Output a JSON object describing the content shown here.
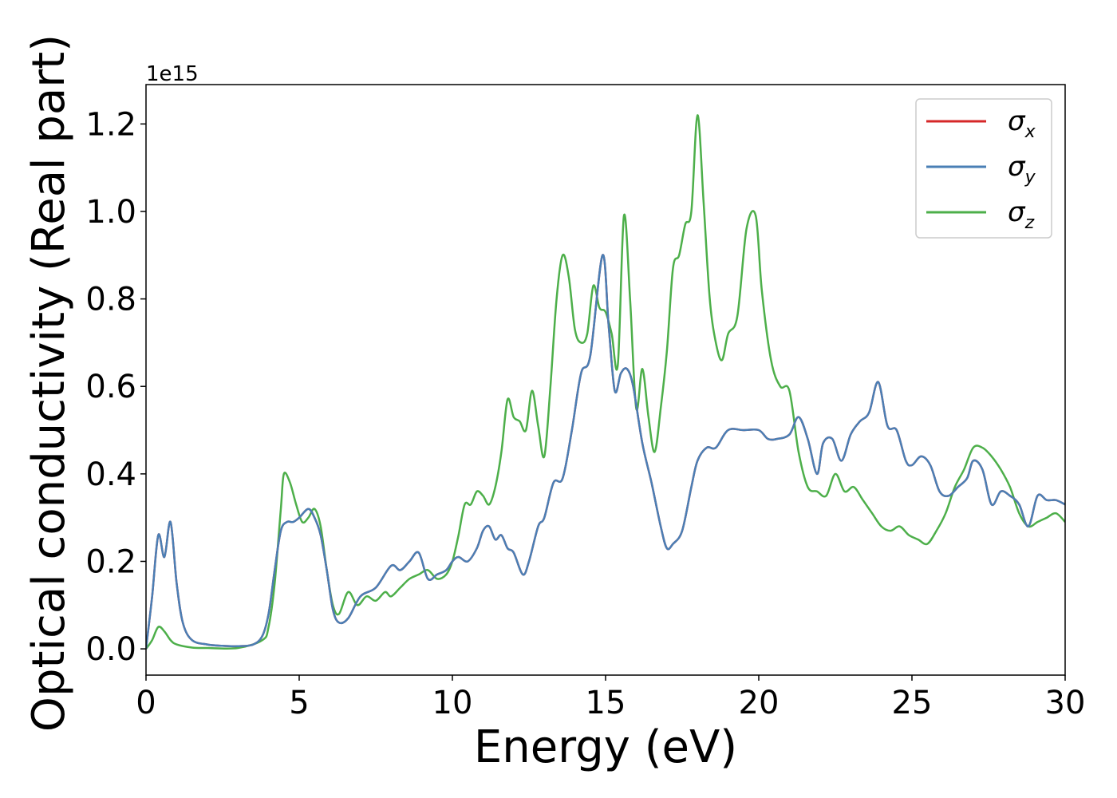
{
  "chart_data": {
    "type": "line",
    "title": "",
    "xlabel": "Energy (eV)",
    "ylabel": "Optical conductivity (Real part)",
    "y_offset_label": "1e15",
    "xlim": [
      0,
      30
    ],
    "ylim": [
      -0.06,
      1.29
    ],
    "xticks": [
      0,
      5,
      10,
      15,
      20,
      25,
      30
    ],
    "xtick_labels": [
      "0",
      "5",
      "10",
      "15",
      "20",
      "25",
      "30"
    ],
    "yticks": [
      0.0,
      0.2,
      0.4,
      0.6,
      0.8,
      1.0,
      1.2
    ],
    "ytick_labels": [
      "0.0",
      "0.2",
      "0.4",
      "0.6",
      "0.8",
      "1.0",
      "1.2"
    ],
    "grid": false,
    "legend_position": "top-right",
    "series": [
      {
        "name": "σx",
        "symbol": "σ",
        "subscript": "x",
        "color": "#d62728",
        "x": [
          0,
          0.2,
          0.4,
          0.6,
          0.8,
          1.0,
          1.2,
          1.5,
          2.0,
          2.5,
          3.0,
          3.5,
          3.8,
          4.0,
          4.2,
          4.4,
          4.6,
          4.8,
          5.0,
          5.3,
          5.5,
          5.7,
          5.9,
          6.1,
          6.3,
          6.6,
          7.0,
          7.5,
          8.0,
          8.3,
          8.6,
          8.9,
          9.2,
          9.5,
          9.8,
          10.0,
          10.2,
          10.5,
          10.8,
          11.0,
          11.2,
          11.4,
          11.6,
          11.8,
          12.0,
          12.3,
          12.5,
          12.8,
          13.0,
          13.3,
          13.6,
          13.9,
          14.2,
          14.5,
          14.9,
          15.1,
          15.3,
          15.5,
          15.7,
          15.9,
          16.2,
          16.5,
          16.8,
          17.0,
          17.2,
          17.5,
          17.8,
          18.0,
          18.3,
          18.6,
          19.0,
          19.5,
          20.0,
          20.3,
          20.6,
          21.0,
          21.3,
          21.6,
          21.9,
          22.1,
          22.4,
          22.7,
          23.0,
          23.3,
          23.6,
          23.9,
          24.2,
          24.5,
          24.8,
          25.0,
          25.3,
          25.6,
          25.9,
          26.2,
          26.5,
          26.8,
          27.0,
          27.3,
          27.6,
          27.9,
          28.2,
          28.5,
          28.8,
          29.1,
          29.4,
          29.7,
          30.0
        ],
        "y": [
          0,
          0.12,
          0.26,
          0.21,
          0.29,
          0.15,
          0.06,
          0.02,
          0.01,
          0.007,
          0.006,
          0.01,
          0.03,
          0.08,
          0.18,
          0.27,
          0.29,
          0.29,
          0.3,
          0.32,
          0.3,
          0.26,
          0.18,
          0.09,
          0.06,
          0.07,
          0.12,
          0.14,
          0.19,
          0.18,
          0.2,
          0.22,
          0.16,
          0.17,
          0.18,
          0.2,
          0.21,
          0.2,
          0.23,
          0.27,
          0.28,
          0.25,
          0.26,
          0.23,
          0.22,
          0.17,
          0.2,
          0.28,
          0.3,
          0.38,
          0.39,
          0.5,
          0.63,
          0.67,
          0.9,
          0.74,
          0.59,
          0.63,
          0.64,
          0.6,
          0.47,
          0.38,
          0.28,
          0.23,
          0.24,
          0.27,
          0.37,
          0.43,
          0.46,
          0.46,
          0.5,
          0.5,
          0.5,
          0.48,
          0.48,
          0.49,
          0.53,
          0.48,
          0.4,
          0.47,
          0.48,
          0.43,
          0.49,
          0.52,
          0.54,
          0.61,
          0.51,
          0.5,
          0.43,
          0.42,
          0.44,
          0.42,
          0.36,
          0.35,
          0.37,
          0.39,
          0.43,
          0.41,
          0.33,
          0.36,
          0.35,
          0.33,
          0.28,
          0.35,
          0.34,
          0.34,
          0.33
        ]
      },
      {
        "name": "σy",
        "symbol": "σ",
        "subscript": "y",
        "color": "#4a7fb5",
        "x": [
          0,
          0.2,
          0.4,
          0.6,
          0.8,
          1.0,
          1.2,
          1.5,
          2.0,
          2.5,
          3.0,
          3.5,
          3.8,
          4.0,
          4.2,
          4.4,
          4.6,
          4.8,
          5.0,
          5.3,
          5.5,
          5.7,
          5.9,
          6.1,
          6.3,
          6.6,
          7.0,
          7.5,
          8.0,
          8.3,
          8.6,
          8.9,
          9.2,
          9.5,
          9.8,
          10.0,
          10.2,
          10.5,
          10.8,
          11.0,
          11.2,
          11.4,
          11.6,
          11.8,
          12.0,
          12.3,
          12.5,
          12.8,
          13.0,
          13.3,
          13.6,
          13.9,
          14.2,
          14.5,
          14.9,
          15.1,
          15.3,
          15.5,
          15.7,
          15.9,
          16.2,
          16.5,
          16.8,
          17.0,
          17.2,
          17.5,
          17.8,
          18.0,
          18.3,
          18.6,
          19.0,
          19.5,
          20.0,
          20.3,
          20.6,
          21.0,
          21.3,
          21.6,
          21.9,
          22.1,
          22.4,
          22.7,
          23.0,
          23.3,
          23.6,
          23.9,
          24.2,
          24.5,
          24.8,
          25.0,
          25.3,
          25.6,
          25.9,
          26.2,
          26.5,
          26.8,
          27.0,
          27.3,
          27.6,
          27.9,
          28.2,
          28.5,
          28.8,
          29.1,
          29.4,
          29.7,
          30.0
        ],
        "y": [
          0,
          0.12,
          0.26,
          0.21,
          0.29,
          0.15,
          0.06,
          0.02,
          0.01,
          0.007,
          0.006,
          0.01,
          0.03,
          0.08,
          0.18,
          0.27,
          0.29,
          0.29,
          0.3,
          0.32,
          0.3,
          0.26,
          0.18,
          0.09,
          0.06,
          0.07,
          0.12,
          0.14,
          0.19,
          0.18,
          0.2,
          0.22,
          0.16,
          0.17,
          0.18,
          0.2,
          0.21,
          0.2,
          0.23,
          0.27,
          0.28,
          0.25,
          0.26,
          0.23,
          0.22,
          0.17,
          0.2,
          0.28,
          0.3,
          0.38,
          0.39,
          0.5,
          0.63,
          0.67,
          0.9,
          0.74,
          0.59,
          0.63,
          0.64,
          0.6,
          0.47,
          0.38,
          0.28,
          0.23,
          0.24,
          0.27,
          0.37,
          0.43,
          0.46,
          0.46,
          0.5,
          0.5,
          0.5,
          0.48,
          0.48,
          0.49,
          0.53,
          0.48,
          0.4,
          0.47,
          0.48,
          0.43,
          0.49,
          0.52,
          0.54,
          0.61,
          0.51,
          0.5,
          0.43,
          0.42,
          0.44,
          0.42,
          0.36,
          0.35,
          0.37,
          0.39,
          0.43,
          0.41,
          0.33,
          0.36,
          0.35,
          0.33,
          0.28,
          0.35,
          0.34,
          0.34,
          0.33
        ]
      },
      {
        "name": "σz",
        "symbol": "σ",
        "subscript": "z",
        "color": "#4daf4a",
        "x": [
          0,
          0.2,
          0.4,
          0.6,
          0.8,
          1.0,
          1.5,
          2.0,
          3.0,
          3.8,
          4.0,
          4.2,
          4.4,
          4.5,
          4.7,
          4.9,
          5.1,
          5.3,
          5.5,
          5.7,
          5.9,
          6.1,
          6.3,
          6.6,
          6.9,
          7.2,
          7.5,
          7.8,
          8.0,
          8.3,
          8.6,
          8.9,
          9.2,
          9.5,
          9.8,
          10.0,
          10.2,
          10.4,
          10.6,
          10.8,
          11.0,
          11.2,
          11.4,
          11.6,
          11.8,
          12.0,
          12.2,
          12.4,
          12.6,
          12.8,
          13.0,
          13.2,
          13.4,
          13.6,
          13.8,
          14.0,
          14.2,
          14.4,
          14.6,
          14.8,
          15.0,
          15.2,
          15.4,
          15.6,
          15.8,
          16.0,
          16.2,
          16.4,
          16.6,
          16.8,
          17.0,
          17.2,
          17.4,
          17.6,
          17.8,
          18.0,
          18.2,
          18.4,
          18.6,
          18.8,
          19.0,
          19.3,
          19.6,
          19.9,
          20.1,
          20.4,
          20.7,
          21.0,
          21.3,
          21.6,
          21.9,
          22.2,
          22.5,
          22.8,
          23.1,
          23.4,
          23.7,
          24.0,
          24.3,
          24.6,
          24.9,
          25.2,
          25.5,
          25.8,
          26.1,
          26.4,
          26.7,
          27.0,
          27.3,
          27.6,
          27.9,
          28.2,
          28.5,
          28.8,
          29.1,
          29.4,
          29.7,
          30.0
        ],
        "y": [
          0,
          0.02,
          0.05,
          0.04,
          0.02,
          0.01,
          0.003,
          0.002,
          0.002,
          0.02,
          0.05,
          0.15,
          0.32,
          0.4,
          0.38,
          0.33,
          0.29,
          0.3,
          0.32,
          0.28,
          0.18,
          0.1,
          0.08,
          0.13,
          0.1,
          0.12,
          0.11,
          0.13,
          0.12,
          0.14,
          0.16,
          0.17,
          0.18,
          0.16,
          0.17,
          0.2,
          0.26,
          0.33,
          0.33,
          0.36,
          0.35,
          0.33,
          0.37,
          0.45,
          0.57,
          0.53,
          0.52,
          0.5,
          0.59,
          0.51,
          0.44,
          0.6,
          0.8,
          0.9,
          0.85,
          0.73,
          0.7,
          0.72,
          0.83,
          0.78,
          0.77,
          0.72,
          0.65,
          0.99,
          0.8,
          0.55,
          0.64,
          0.53,
          0.45,
          0.55,
          0.68,
          0.87,
          0.9,
          0.97,
          1.0,
          1.22,
          1.02,
          0.8,
          0.7,
          0.66,
          0.72,
          0.76,
          0.96,
          0.99,
          0.82,
          0.66,
          0.6,
          0.59,
          0.45,
          0.37,
          0.36,
          0.35,
          0.4,
          0.36,
          0.37,
          0.34,
          0.31,
          0.28,
          0.27,
          0.28,
          0.26,
          0.25,
          0.24,
          0.27,
          0.31,
          0.37,
          0.41,
          0.46,
          0.46,
          0.44,
          0.41,
          0.37,
          0.31,
          0.28,
          0.29,
          0.3,
          0.31,
          0.29
        ]
      }
    ]
  }
}
